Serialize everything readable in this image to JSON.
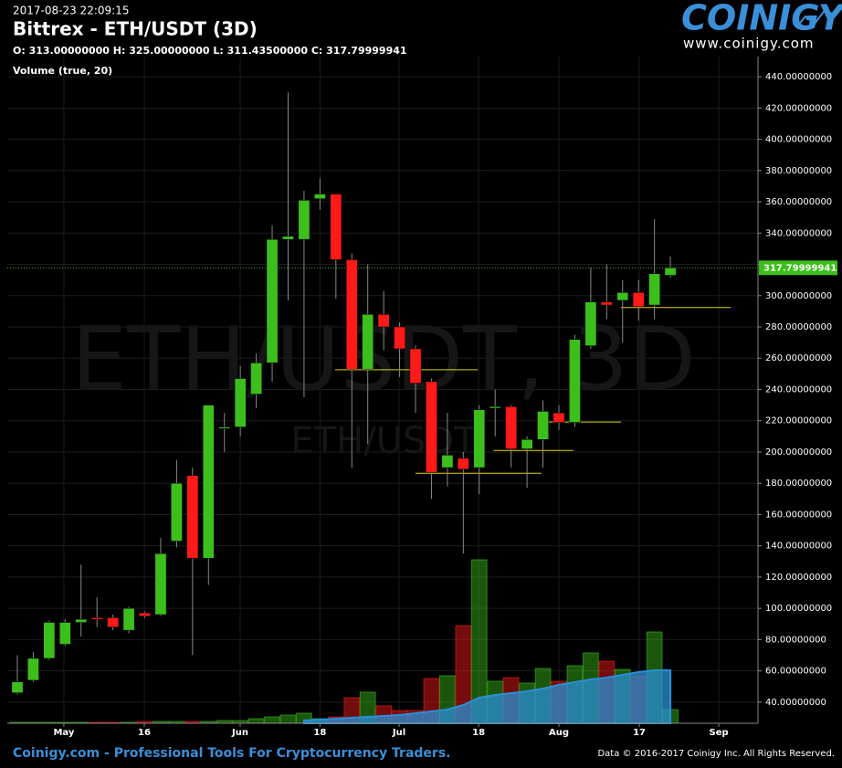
{
  "chart_data": {
    "type": "candlestick",
    "timestamp": "2017-08-23 22:09:15",
    "title": "Bittrex - ETH/USDT (3D)",
    "subtitle": "O: 313.00000000 H: 325.00000000 L: 311.43500000 C: 317.79999941",
    "volume_label": "Volume (true, 20)",
    "watermark": "ETH/USDT, 3D",
    "watermark_small": "ETH/USDT",
    "logo": "COINIGY",
    "logo_url": "www.coinigy.com",
    "footer_left": "Coinigy.com - Professional Tools For Cryptocurrency Traders.",
    "footer_right": "Data © 2016-2017 Coinigy Inc. All Rights Reserved.",
    "up_color": "#3cbf1c",
    "down_color": "#ff1a1a",
    "ma_color": "#2a8fd6",
    "x": [
      0,
      1,
      2,
      3,
      4,
      5,
      6,
      7,
      8,
      9,
      10,
      11,
      12,
      13,
      14,
      15,
      16,
      17,
      18,
      19,
      20,
      21,
      22,
      23,
      24,
      25,
      26,
      27,
      28,
      29,
      30,
      31,
      32,
      33,
      34,
      35,
      36,
      37,
      38,
      39,
      40,
      41
    ],
    "open": [
      46,
      54,
      68,
      77,
      91,
      94,
      94,
      86,
      97,
      96,
      143,
      185,
      132,
      215,
      216,
      237,
      257,
      336,
      336,
      362,
      365,
      323,
      253,
      288,
      280,
      266,
      245,
      190,
      196,
      190,
      228,
      229,
      202,
      208,
      225,
      219,
      268,
      296,
      297,
      302,
      294,
      313
    ],
    "high": [
      70,
      72,
      92,
      93,
      128,
      107,
      96,
      101,
      98,
      145,
      195,
      190,
      230,
      225,
      255,
      263,
      345,
      430,
      367,
      375,
      364,
      327,
      320,
      303,
      283,
      268,
      247,
      225,
      200,
      230,
      240,
      230,
      210,
      233,
      230,
      275,
      318,
      320,
      310,
      310,
      349,
      325
    ],
    "low": [
      45,
      53,
      67,
      76,
      82,
      88,
      86,
      84,
      94,
      95,
      139,
      70,
      115,
      200,
      210,
      228,
      245,
      297,
      235,
      355,
      298,
      190,
      205,
      265,
      248,
      225,
      170,
      178,
      135,
      173,
      210,
      190,
      177,
      190,
      214,
      216,
      266,
      285,
      270,
      284,
      285,
      311.435
    ],
    "close": [
      53,
      68,
      91,
      91,
      93,
      93,
      88,
      100,
      95,
      135,
      180,
      132,
      230,
      216,
      247,
      257,
      336,
      338,
      361,
      365,
      323,
      253,
      288,
      280,
      266,
      244,
      187,
      198,
      189,
      227,
      229,
      202,
      208,
      226,
      219,
      272,
      296,
      294,
      302,
      293,
      314,
      317.79999941
    ],
    "volume": [
      0.5,
      0.5,
      0.5,
      0.5,
      0.5,
      0.5,
      0.5,
      0.5,
      1,
      1,
      1,
      1,
      1,
      1.5,
      1.5,
      2.5,
      3.5,
      4.5,
      5.5,
      2.5,
      3.5,
      14,
      17,
      9.5,
      7,
      7,
      24.5,
      26,
      53.5,
      89.5,
      23,
      25,
      22,
      30,
      23,
      31.5,
      38.5,
      34,
      29.5,
      26,
      50,
      7.5
    ],
    "volume_ma": [
      null,
      null,
      null,
      null,
      null,
      null,
      null,
      null,
      null,
      null,
      null,
      null,
      null,
      null,
      null,
      null,
      null,
      null,
      1.5,
      2,
      2.5,
      3,
      3.5,
      4,
      4.5,
      5.5,
      6.5,
      7.5,
      10,
      14,
      15.5,
      16.5,
      17.5,
      19,
      21,
      22.5,
      24,
      25,
      26.5,
      28,
      29,
      29
    ],
    "vlim": [
      0,
      100
    ],
    "levels": [
      {
        "value": 252.6,
        "from": 19.95,
        "to": 28.9
      },
      {
        "value": 186.4,
        "from": 25,
        "to": 32.9
      },
      {
        "value": 201,
        "from": 29.9,
        "to": 34.9
      },
      {
        "value": 219.2,
        "from": 32.9,
        "to": 37.9
      },
      {
        "value": 292.4,
        "from": 37.9,
        "to": 44.8
      }
    ],
    "last_price": {
      "value": 317.79999941,
      "label": "317.79999941"
    },
    "xlim": [
      -0.63,
      46.5
    ],
    "ylim": [
      26.5,
      452.9
    ],
    "xticks": [
      {
        "value": 2.92,
        "label": "May"
      },
      {
        "value": 7.97,
        "label": "16"
      },
      {
        "value": 13.99,
        "label": "Jun"
      },
      {
        "value": 19.0,
        "label": "18"
      },
      {
        "value": 23.97,
        "label": "Jul"
      },
      {
        "value": 28.96,
        "label": "18"
      },
      {
        "value": 34.0,
        "label": "Aug"
      },
      {
        "value": 39.05,
        "label": "17"
      },
      {
        "value": 44.04,
        "label": "Sep"
      }
    ],
    "yticks": [
      {
        "value": 40,
        "label": "40.00000000"
      },
      {
        "value": 60,
        "label": "60.00000000"
      },
      {
        "value": 80,
        "label": "80.00000000"
      },
      {
        "value": 100,
        "label": "100.00000000"
      },
      {
        "value": 120,
        "label": "120.00000000"
      },
      {
        "value": 140,
        "label": "140.00000000"
      },
      {
        "value": 160,
        "label": "160.00000000"
      },
      {
        "value": 180,
        "label": "180.00000000"
      },
      {
        "value": 200,
        "label": "200.00000000"
      },
      {
        "value": 220,
        "label": "220.00000000"
      },
      {
        "value": 240,
        "label": "240.00000000"
      },
      {
        "value": 260,
        "label": "260.00000000"
      },
      {
        "value": 280,
        "label": "280.00000000"
      },
      {
        "value": 300,
        "label": "300.00000000"
      },
      {
        "value": 320,
        "label": "320.00000000"
      },
      {
        "value": 340,
        "label": "340.00000000"
      },
      {
        "value": 360,
        "label": "360.00000000"
      },
      {
        "value": 380,
        "label": "380.00000000"
      },
      {
        "value": 400,
        "label": "400.00000000"
      },
      {
        "value": 420,
        "label": "420.00000000"
      },
      {
        "value": 440,
        "label": "440.00000000"
      }
    ],
    "grid": true
  }
}
